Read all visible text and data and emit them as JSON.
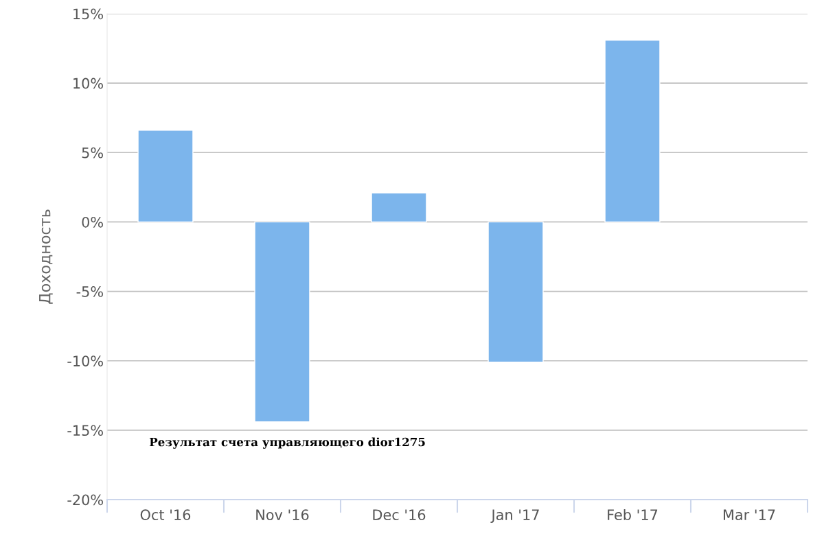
{
  "chart_data": {
    "type": "bar",
    "categories": [
      "Oct '16",
      "Nov '16",
      "Dec '16",
      "Jan '17",
      "Feb '17",
      "Mar '17"
    ],
    "values": [
      6.6,
      -14.4,
      2.1,
      -10.1,
      13.1,
      null
    ],
    "color": "#7cb5ec",
    "ylabel": "Доходность",
    "ylim": [
      -20,
      15
    ],
    "yticks": [
      {
        "value": -20,
        "label": "-20%"
      },
      {
        "value": -15,
        "label": "-15%"
      },
      {
        "value": -10,
        "label": "-10%"
      },
      {
        "value": -5,
        "label": "-5%"
      },
      {
        "value": 0,
        "label": "0%"
      },
      {
        "value": 5,
        "label": "5%"
      },
      {
        "value": 10,
        "label": "10%"
      },
      {
        "value": 15,
        "label": "15%"
      }
    ],
    "grid": "y",
    "legend": false,
    "annotations": [
      "Результат счета управляющего dior1275"
    ]
  }
}
